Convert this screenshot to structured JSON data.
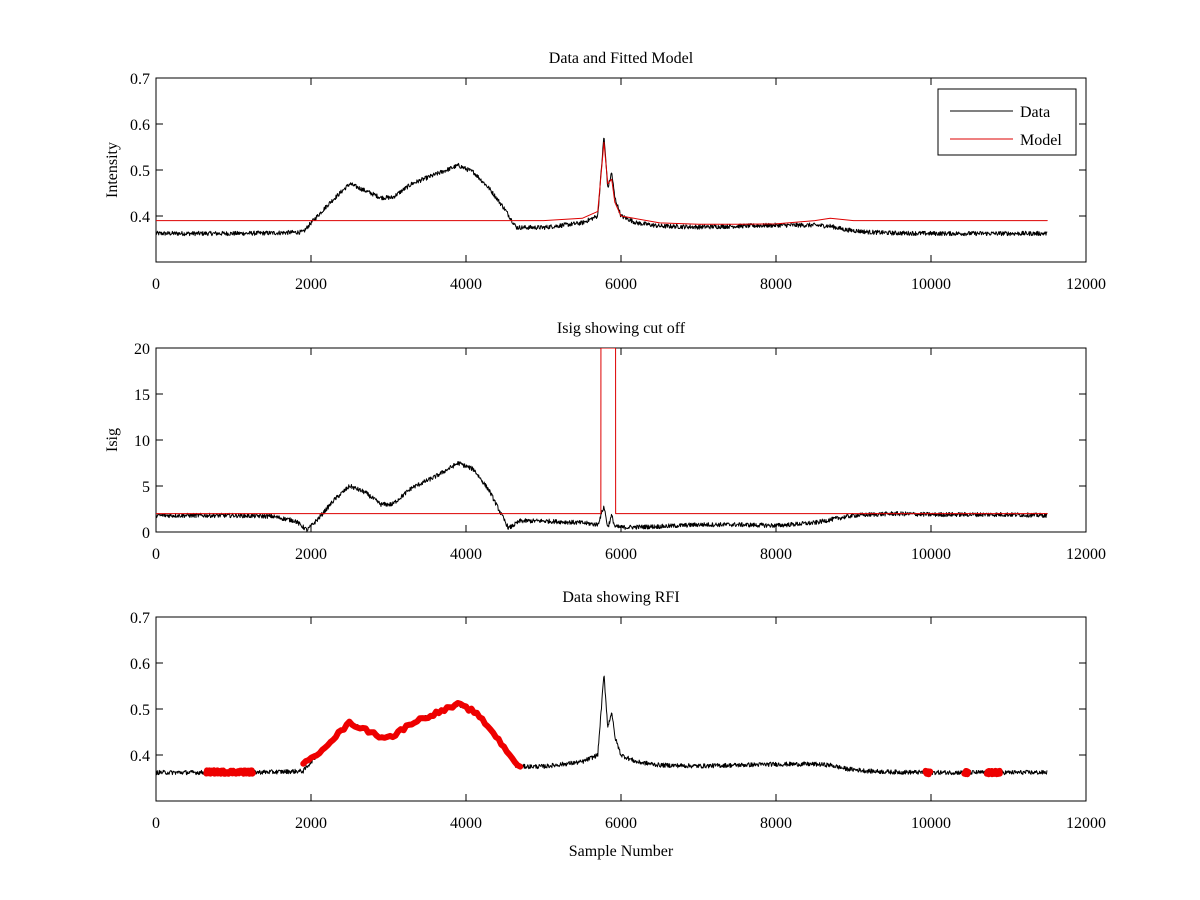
{
  "chart_data": [
    {
      "type": "line",
      "title": "Data and Fitted Model",
      "xlabel": "",
      "ylabel": "Intensity",
      "xlim": [
        0,
        12000
      ],
      "ylim": [
        0.3,
        0.7
      ],
      "xticks": [
        0,
        2000,
        4000,
        6000,
        8000,
        10000,
        12000
      ],
      "yticks": [
        0.4,
        0.5,
        0.6,
        0.7
      ],
      "xtick_labels": [
        "0",
        "2000",
        "4000",
        "6000",
        "8000",
        "10000",
        "12000"
      ],
      "ytick_labels": [
        "0.4",
        "0.5",
        "0.6",
        "0.7"
      ],
      "legend": "top-right",
      "series": [
        {
          "name": "Data",
          "color": "#000000",
          "x": [
            0,
            500,
            1000,
            1500,
            1900,
            2000,
            2250,
            2500,
            2700,
            2900,
            3050,
            3300,
            3600,
            3900,
            4100,
            4300,
            4500,
            4650,
            5000,
            5500,
            5700,
            5780,
            5830,
            5880,
            5920,
            6000,
            6200,
            6500,
            7000,
            7500,
            8000,
            8500,
            8700,
            8900,
            9200,
            9500,
            10000,
            10500,
            11000,
            11500
          ],
          "y": [
            0.362,
            0.362,
            0.362,
            0.363,
            0.365,
            0.385,
            0.43,
            0.47,
            0.455,
            0.44,
            0.44,
            0.47,
            0.49,
            0.51,
            0.495,
            0.46,
            0.415,
            0.375,
            0.375,
            0.385,
            0.4,
            0.575,
            0.46,
            0.495,
            0.44,
            0.4,
            0.385,
            0.378,
            0.376,
            0.378,
            0.38,
            0.38,
            0.378,
            0.37,
            0.365,
            0.363,
            0.362,
            0.362,
            0.362,
            0.362
          ]
        },
        {
          "name": "Model",
          "color": "#dd0000",
          "x": [
            0,
            1000,
            2000,
            3000,
            4000,
            4500,
            5000,
            5500,
            5700,
            5780,
            5830,
            5880,
            5920,
            6000,
            6500,
            7000,
            7500,
            8000,
            8500,
            8700,
            9000,
            9500,
            10000,
            11500
          ],
          "y": [
            0.39,
            0.39,
            0.39,
            0.39,
            0.39,
            0.39,
            0.39,
            0.395,
            0.41,
            0.56,
            0.47,
            0.48,
            0.43,
            0.4,
            0.385,
            0.382,
            0.382,
            0.383,
            0.39,
            0.395,
            0.39,
            0.39,
            0.39,
            0.39
          ]
        }
      ]
    },
    {
      "type": "line",
      "title": "Isig showing cut off",
      "xlabel": "",
      "ylabel": "Isig",
      "xlim": [
        0,
        12000
      ],
      "ylim": [
        0,
        20
      ],
      "xticks": [
        0,
        2000,
        4000,
        6000,
        8000,
        10000,
        12000
      ],
      "yticks": [
        0,
        5,
        10,
        15,
        20
      ],
      "xtick_labels": [
        "0",
        "2000",
        "4000",
        "6000",
        "8000",
        "10000",
        "12000"
      ],
      "ytick_labels": [
        "0",
        "5",
        "10",
        "15",
        "20"
      ],
      "series": [
        {
          "color": "#000000",
          "x": [
            0,
            500,
            1000,
            1500,
            1800,
            1950,
            2100,
            2300,
            2500,
            2700,
            2900,
            3050,
            3300,
            3600,
            3900,
            4100,
            4300,
            4450,
            4550,
            4700,
            5000,
            5500,
            5700,
            5780,
            5830,
            5880,
            5920,
            6000,
            6500,
            7000,
            7500,
            8000,
            8500,
            8800,
            9000,
            9500,
            10000,
            10500,
            11000,
            11500
          ],
          "y": [
            1.8,
            1.8,
            1.8,
            1.7,
            1.2,
            0.2,
            1.5,
            3.5,
            5.0,
            4.3,
            3.0,
            3.0,
            4.8,
            6.0,
            7.5,
            6.8,
            4.5,
            2.0,
            0.4,
            1.2,
            1.2,
            1.0,
            0.8,
            2.8,
            0.5,
            1.8,
            0.6,
            0.5,
            0.6,
            0.8,
            0.8,
            0.7,
            1.0,
            1.5,
            1.8,
            2.0,
            1.9,
            1.9,
            1.9,
            1.8
          ]
        },
        {
          "color": "#dd0000",
          "x": [
            0,
            5740,
            5741,
            5850,
            5851,
            5930,
            5931,
            11500
          ],
          "y": [
            2.0,
            2.0,
            20,
            20,
            20,
            20,
            2.0,
            2.0
          ]
        }
      ]
    },
    {
      "type": "line",
      "title": "Data showing RFI",
      "xlabel": "Sample Number",
      "ylabel": "",
      "xlim": [
        0,
        12000
      ],
      "ylim": [
        0.3,
        0.7
      ],
      "xticks": [
        0,
        2000,
        4000,
        6000,
        8000,
        10000,
        12000
      ],
      "yticks": [
        0.4,
        0.5,
        0.6,
        0.7
      ],
      "xtick_labels": [
        "0",
        "2000",
        "4000",
        "6000",
        "8000",
        "10000",
        "12000"
      ],
      "ytick_labels": [
        "0.4",
        "0.5",
        "0.6",
        "0.7"
      ],
      "series": [
        {
          "color": "#000000",
          "x": [
            0,
            500,
            1000,
            1500,
            1900,
            2000,
            2250,
            2500,
            2700,
            2900,
            3050,
            3300,
            3600,
            3900,
            4100,
            4300,
            4500,
            4650,
            5000,
            5500,
            5700,
            5780,
            5830,
            5880,
            5920,
            6000,
            6200,
            6500,
            7000,
            7500,
            8000,
            8500,
            8700,
            8900,
            9200,
            9500,
            10000,
            10500,
            11000,
            11500
          ],
          "y": [
            0.362,
            0.362,
            0.362,
            0.363,
            0.365,
            0.385,
            0.43,
            0.47,
            0.455,
            0.44,
            0.44,
            0.47,
            0.49,
            0.51,
            0.495,
            0.46,
            0.415,
            0.375,
            0.375,
            0.385,
            0.4,
            0.575,
            0.46,
            0.495,
            0.44,
            0.4,
            0.385,
            0.378,
            0.376,
            0.378,
            0.38,
            0.38,
            0.378,
            0.37,
            0.365,
            0.363,
            0.362,
            0.362,
            0.362,
            0.362
          ]
        },
        {
          "color": "#ee0000",
          "x": [
            650,
            800,
            950,
            1100,
            1250
          ],
          "y": [
            0.363,
            0.363,
            0.363,
            0.363,
            0.363
          ]
        },
        {
          "color": "#ee0000",
          "x": [
            1900,
            2000,
            2250,
            2500,
            2700,
            2900,
            3050,
            3300,
            3600,
            3900,
            4100,
            4300,
            4500,
            4700
          ],
          "y": [
            0.38,
            0.39,
            0.43,
            0.47,
            0.455,
            0.44,
            0.44,
            0.47,
            0.49,
            0.51,
            0.495,
            0.46,
            0.415,
            0.372
          ]
        },
        {
          "color": "#ee0000",
          "x": [
            9930,
            9990
          ],
          "y": [
            0.362,
            0.362
          ]
        },
        {
          "color": "#ee0000",
          "x": [
            10430,
            10480
          ],
          "y": [
            0.362,
            0.362
          ]
        },
        {
          "color": "#ee0000",
          "x": [
            10720,
            10800,
            10890
          ],
          "y": [
            0.362,
            0.362,
            0.362
          ]
        }
      ]
    }
  ]
}
